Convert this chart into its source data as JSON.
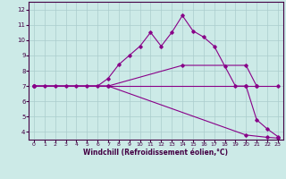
{
  "xlabel": "Windchill (Refroidissement éolien,°C)",
  "bg_color": "#cceae7",
  "grid_color": "#aacccc",
  "line_color": "#880088",
  "xlim": [
    -0.5,
    23.5
  ],
  "ylim": [
    3.5,
    12.5
  ],
  "yticks": [
    4,
    5,
    6,
    7,
    8,
    9,
    10,
    11,
    12
  ],
  "xticks": [
    0,
    1,
    2,
    3,
    4,
    5,
    6,
    7,
    8,
    9,
    10,
    11,
    12,
    13,
    14,
    15,
    16,
    17,
    18,
    19,
    20,
    21,
    22,
    23
  ],
  "series1_x": [
    0,
    1,
    2,
    3,
    4,
    5,
    6,
    7,
    8,
    9,
    10,
    11,
    12,
    13,
    14,
    15,
    16,
    17,
    18,
    19,
    20,
    21,
    22,
    23
  ],
  "series1_y": [
    7.0,
    7.0,
    7.0,
    7.0,
    7.0,
    7.0,
    7.0,
    7.5,
    8.4,
    9.0,
    9.6,
    10.5,
    9.6,
    10.5,
    11.6,
    10.6,
    10.2,
    9.6,
    8.3,
    7.0,
    7.0,
    4.8,
    4.2,
    3.7
  ],
  "series2_x": [
    0,
    7,
    14,
    20,
    21
  ],
  "series2_y": [
    7.0,
    7.0,
    8.35,
    8.35,
    7.0
  ],
  "series3_x": [
    0,
    7,
    20,
    22,
    23
  ],
  "series3_y": [
    7.0,
    7.0,
    3.8,
    3.65,
    3.6
  ],
  "series4_x": [
    0,
    20,
    21,
    23
  ],
  "series4_y": [
    7.0,
    7.0,
    7.0,
    7.0
  ]
}
